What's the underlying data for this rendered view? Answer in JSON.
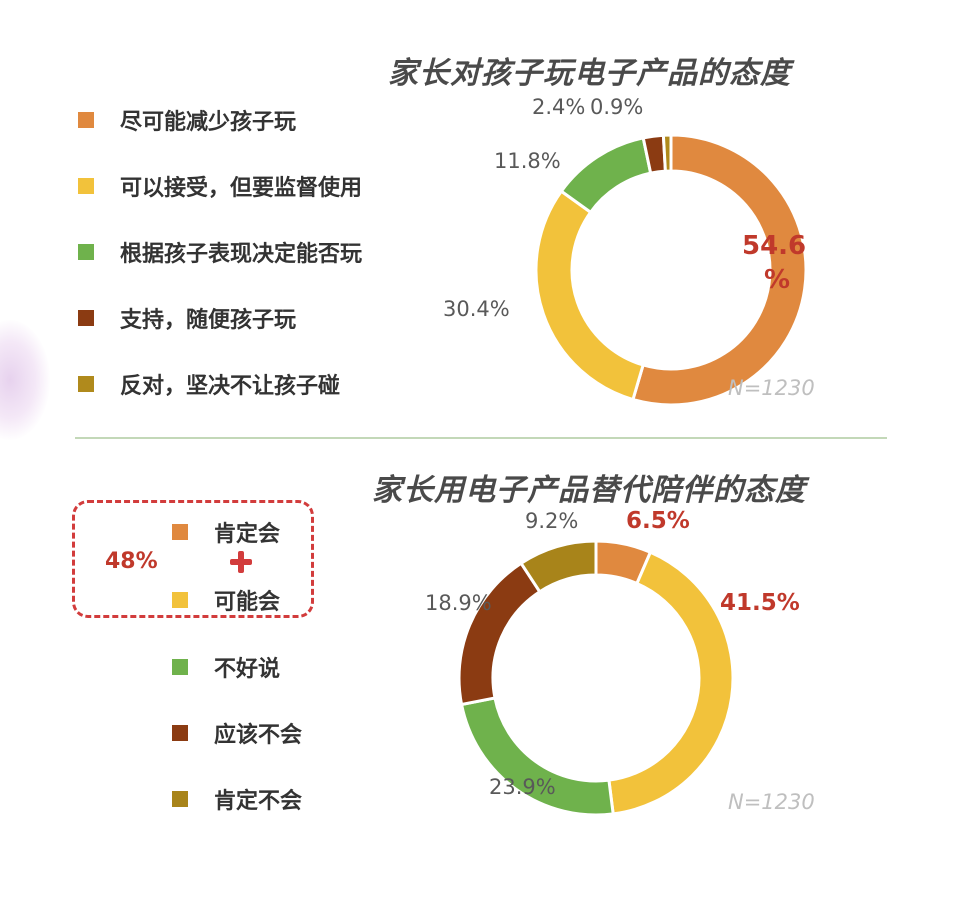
{
  "chart_data": [
    {
      "type": "pie",
      "title": "家长对孩子玩电子产品的态度",
      "note": "N=1230",
      "categories": [
        "尽可能减少孩子玩",
        "可以接受，但要监督使用",
        "根据孩子表现决定能否玩",
        "支持，随便孩子玩",
        "反对，坚决不让孩子碰"
      ],
      "values": [
        54.6,
        30.4,
        11.8,
        2.4,
        0.9
      ],
      "value_labels": [
        "54.6%",
        "30.4%",
        "11.8%",
        "2.4%",
        "0.9%"
      ],
      "colors": [
        "#e0893f",
        "#f2c23b",
        "#6fb24c",
        "#8b3b12",
        "#b08a1c"
      ],
      "highlight_color": "#c0392b",
      "legend_placement": "left"
    },
    {
      "type": "pie",
      "title": "家长用电子产品替代陪伴的态度",
      "note": "N=1230",
      "categories": [
        "肯定会",
        "可能会",
        "不好说",
        "应该不会",
        "肯定不会"
      ],
      "values": [
        6.5,
        41.5,
        23.9,
        18.9,
        9.2
      ],
      "value_labels": [
        "6.5%",
        "41.5%",
        "23.9%",
        "18.9%",
        "9.2%"
      ],
      "colors": [
        "#e0893f",
        "#f2c23b",
        "#6fb24c",
        "#8b3b12",
        "#a8841a"
      ],
      "highlight_color": "#c0392b",
      "legend_placement": "left",
      "group_total": "48%"
    }
  ]
}
